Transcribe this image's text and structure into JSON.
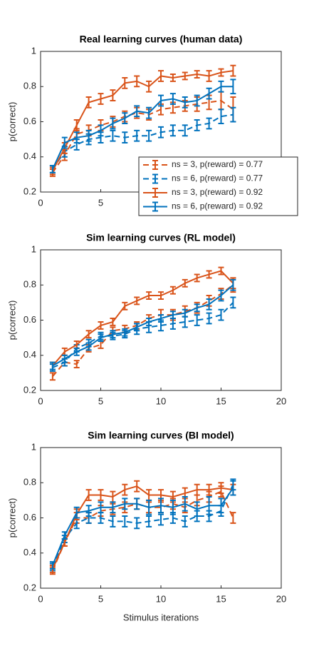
{
  "chart_data": [
    {
      "type": "line",
      "title": "Real learning curves (human data)",
      "ylabel": "p(correct)",
      "x": [
        1,
        2,
        3,
        4,
        5,
        6,
        7,
        8,
        9,
        10,
        11,
        12,
        13,
        14,
        15,
        16
      ],
      "xlim": [
        0,
        20
      ],
      "ylim": [
        0.2,
        1
      ],
      "xticks": [
        0,
        5,
        10,
        15,
        20
      ],
      "yticks": [
        0.2,
        0.4,
        0.6,
        0.8,
        1
      ],
      "legend": "southeast",
      "series": [
        {
          "name": "ns = 3, p(reward) = 0.77",
          "color": "#d95319",
          "dashed": true,
          "values": [
            0.31,
            0.41,
            0.53,
            0.55,
            0.58,
            0.6,
            0.63,
            0.65,
            0.64,
            0.67,
            0.68,
            0.69,
            0.7,
            0.71,
            0.72,
            0.67
          ],
          "errors": [
            0.02,
            0.03,
            0.03,
            0.03,
            0.03,
            0.03,
            0.03,
            0.03,
            0.03,
            0.03,
            0.03,
            0.03,
            0.04,
            0.04,
            0.05,
            0.07
          ]
        },
        {
          "name": "ns = 6, p(reward) = 0.77",
          "color": "#0072bd",
          "dashed": true,
          "values": [
            0.33,
            0.43,
            0.47,
            0.5,
            0.51,
            0.52,
            0.51,
            0.52,
            0.52,
            0.54,
            0.55,
            0.55,
            0.58,
            0.59,
            0.63,
            0.64
          ],
          "errors": [
            0.02,
            0.03,
            0.03,
            0.03,
            0.03,
            0.03,
            0.03,
            0.03,
            0.03,
            0.03,
            0.03,
            0.03,
            0.03,
            0.03,
            0.04,
            0.04
          ]
        },
        {
          "name": "ns = 3, p(reward) = 0.92",
          "color": "#d95319",
          "dashed": false,
          "values": [
            0.32,
            0.45,
            0.58,
            0.71,
            0.73,
            0.75,
            0.82,
            0.83,
            0.8,
            0.86,
            0.85,
            0.86,
            0.87,
            0.86,
            0.88,
            0.89
          ],
          "errors": [
            0.02,
            0.03,
            0.03,
            0.03,
            0.03,
            0.03,
            0.03,
            0.03,
            0.03,
            0.03,
            0.02,
            0.02,
            0.02,
            0.03,
            0.02,
            0.03
          ]
        },
        {
          "name": "ns = 6, p(reward) = 0.92",
          "color": "#0072bd",
          "dashed": false,
          "values": [
            0.33,
            0.48,
            0.51,
            0.52,
            0.55,
            0.59,
            0.62,
            0.66,
            0.65,
            0.72,
            0.73,
            0.71,
            0.72,
            0.76,
            0.8,
            0.8
          ],
          "errors": [
            0.02,
            0.03,
            0.03,
            0.03,
            0.03,
            0.03,
            0.03,
            0.03,
            0.03,
            0.03,
            0.03,
            0.03,
            0.03,
            0.03,
            0.03,
            0.04
          ]
        }
      ]
    },
    {
      "type": "line",
      "title": "Sim learning curves (RL model)",
      "ylabel": "p(correct)",
      "x": [
        1,
        2,
        3,
        4,
        5,
        6,
        7,
        8,
        9,
        10,
        11,
        12,
        13,
        14,
        15,
        16
      ],
      "xlim": [
        0,
        20
      ],
      "ylim": [
        0.2,
        1
      ],
      "xticks": [
        0,
        5,
        10,
        15,
        20
      ],
      "yticks": [
        0.2,
        0.4,
        0.6,
        0.8,
        1
      ],
      "series": [
        {
          "color": "#d95319",
          "dashed": true,
          "values": [
            0.28,
            0.36,
            0.35,
            0.44,
            0.46,
            0.54,
            0.55,
            0.57,
            0.61,
            0.63,
            0.63,
            0.65,
            0.67,
            0.71,
            0.75,
            0.8
          ],
          "errors": [
            0.02,
            0.02,
            0.02,
            0.02,
            0.02,
            0.02,
            0.02,
            0.02,
            0.02,
            0.03,
            0.03,
            0.03,
            0.03,
            0.03,
            0.03,
            0.04
          ]
        },
        {
          "color": "#0072bd",
          "dashed": true,
          "values": [
            0.33,
            0.36,
            0.44,
            0.47,
            0.51,
            0.51,
            0.52,
            0.55,
            0.56,
            0.57,
            0.58,
            0.59,
            0.6,
            0.61,
            0.63,
            0.7
          ],
          "errors": [
            0.02,
            0.02,
            0.02,
            0.02,
            0.02,
            0.02,
            0.02,
            0.03,
            0.03,
            0.03,
            0.03,
            0.03,
            0.03,
            0.03,
            0.03,
            0.03
          ]
        },
        {
          "color": "#d95319",
          "dashed": false,
          "values": [
            0.34,
            0.42,
            0.46,
            0.52,
            0.57,
            0.59,
            0.68,
            0.71,
            0.74,
            0.74,
            0.77,
            0.81,
            0.84,
            0.86,
            0.88,
            0.81
          ],
          "errors": [
            0.02,
            0.02,
            0.02,
            0.02,
            0.02,
            0.02,
            0.02,
            0.02,
            0.02,
            0.02,
            0.02,
            0.02,
            0.02,
            0.02,
            0.02,
            0.03
          ]
        },
        {
          "color": "#0072bd",
          "dashed": false,
          "values": [
            0.34,
            0.38,
            0.42,
            0.45,
            0.5,
            0.52,
            0.53,
            0.56,
            0.59,
            0.61,
            0.63,
            0.64,
            0.67,
            0.69,
            0.74,
            0.8
          ],
          "errors": [
            0.02,
            0.02,
            0.02,
            0.02,
            0.02,
            0.02,
            0.02,
            0.02,
            0.02,
            0.02,
            0.02,
            0.02,
            0.02,
            0.03,
            0.03,
            0.03
          ]
        }
      ]
    },
    {
      "type": "line",
      "title": "Sim learning curves (BI model)",
      "ylabel": "p(correct)",
      "xlabel": "Stimulus iterations",
      "x": [
        1,
        2,
        3,
        4,
        5,
        6,
        7,
        8,
        9,
        10,
        11,
        12,
        13,
        14,
        15,
        16
      ],
      "xlim": [
        0,
        20
      ],
      "ylim": [
        0.2,
        1
      ],
      "xticks": [
        0,
        5,
        10,
        15,
        20
      ],
      "yticks": [
        0.2,
        0.4,
        0.6,
        0.8,
        1
      ],
      "series": [
        {
          "color": "#d95319",
          "dashed": true,
          "values": [
            0.3,
            0.46,
            0.6,
            0.6,
            0.64,
            0.65,
            0.66,
            0.68,
            0.66,
            0.66,
            0.68,
            0.66,
            0.7,
            0.72,
            0.75,
            0.6
          ],
          "errors": [
            0.02,
            0.02,
            0.03,
            0.03,
            0.03,
            0.03,
            0.03,
            0.03,
            0.03,
            0.03,
            0.03,
            0.03,
            0.03,
            0.03,
            0.03,
            0.03
          ]
        },
        {
          "color": "#0072bd",
          "dashed": true,
          "values": [
            0.32,
            0.48,
            0.57,
            0.6,
            0.6,
            0.58,
            0.58,
            0.57,
            0.58,
            0.59,
            0.6,
            0.58,
            0.61,
            0.61,
            0.64,
            0.79
          ],
          "errors": [
            0.02,
            0.02,
            0.03,
            0.03,
            0.03,
            0.03,
            0.03,
            0.03,
            0.03,
            0.03,
            0.03,
            0.03,
            0.03,
            0.03,
            0.03,
            0.03
          ]
        },
        {
          "color": "#d95319",
          "dashed": false,
          "values": [
            0.31,
            0.46,
            0.62,
            0.73,
            0.73,
            0.72,
            0.76,
            0.78,
            0.73,
            0.73,
            0.72,
            0.74,
            0.76,
            0.76,
            0.77,
            0.76
          ],
          "errors": [
            0.02,
            0.02,
            0.03,
            0.03,
            0.03,
            0.03,
            0.03,
            0.03,
            0.03,
            0.03,
            0.03,
            0.03,
            0.03,
            0.03,
            0.03,
            0.03
          ]
        },
        {
          "color": "#0072bd",
          "dashed": false,
          "values": [
            0.33,
            0.5,
            0.63,
            0.64,
            0.66,
            0.66,
            0.68,
            0.68,
            0.66,
            0.67,
            0.66,
            0.68,
            0.65,
            0.67,
            0.67,
            0.77
          ],
          "errors": [
            0.02,
            0.02,
            0.03,
            0.03,
            0.03,
            0.03,
            0.03,
            0.03,
            0.04,
            0.04,
            0.04,
            0.04,
            0.04,
            0.05,
            0.04,
            0.04
          ]
        }
      ]
    }
  ]
}
